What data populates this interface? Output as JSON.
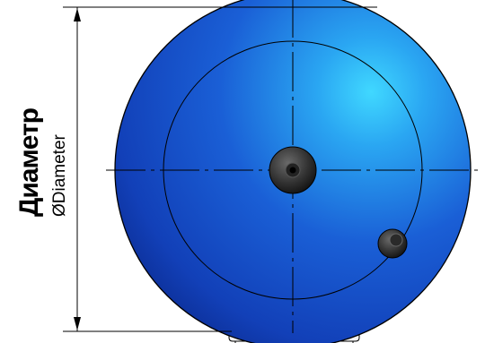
{
  "labels": {
    "primary": "Диаметр",
    "secondary": "ØDiameter"
  },
  "colors": {
    "tank_body": "#1a5fd6",
    "tank_highlight": "#3fd0ff",
    "tank_shadow": "#0a2a8a",
    "outline": "#000000",
    "background": "#ffffff"
  },
  "icons": {
    "center_fitting": "center-fitting-icon",
    "side_fitting": "side-fitting-icon"
  }
}
